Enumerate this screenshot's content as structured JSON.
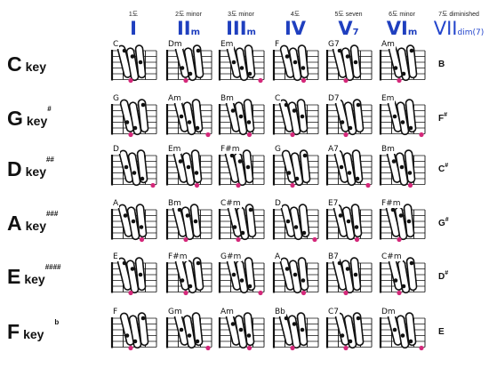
{
  "columns": [
    {
      "num": "1도",
      "roman": "I",
      "sfx": "",
      "quality": ""
    },
    {
      "num": "2도",
      "roman": "II",
      "sfx": "m",
      "quality": "minor"
    },
    {
      "num": "3도",
      "roman": "III",
      "sfx": "m",
      "quality": "minor"
    },
    {
      "num": "4도",
      "roman": "IV",
      "sfx": "",
      "quality": ""
    },
    {
      "num": "5도",
      "roman": "V",
      "sfx": "7",
      "quality": "seven"
    },
    {
      "num": "6도",
      "roman": "VI",
      "sfx": "m",
      "quality": "minor"
    },
    {
      "num": "7도",
      "roman": "VII",
      "sfx": "dim(7)",
      "quality": "diminished"
    }
  ],
  "rows": [
    {
      "letter": "C",
      "word": "key",
      "sharps": "",
      "flat": "",
      "chords": [
        "C",
        "Dm",
        "Em",
        "F",
        "G7",
        "Am"
      ],
      "dim": "B",
      "dim_sharp": ""
    },
    {
      "letter": "G",
      "word": "key",
      "sharps": "#",
      "flat": "",
      "chords": [
        "G",
        "Am",
        "Bm",
        "C",
        "D7",
        "Em"
      ],
      "dim": "F",
      "dim_sharp": "#"
    },
    {
      "letter": "D",
      "word": "key",
      "sharps": "##",
      "flat": "",
      "chords": [
        "D",
        "Em",
        "F#m",
        "G",
        "A7",
        "Bm"
      ],
      "dim": "C",
      "dim_sharp": "#"
    },
    {
      "letter": "A",
      "word": "key",
      "sharps": "###",
      "flat": "",
      "chords": [
        "A",
        "Bm",
        "C#m",
        "D",
        "E7",
        "F#m"
      ],
      "dim": "G",
      "dim_sharp": "#"
    },
    {
      "letter": "E",
      "word": "key",
      "sharps": "####",
      "flat": "",
      "chords": [
        "E",
        "F#m",
        "G#m",
        "A",
        "B7",
        "C#m"
      ],
      "dim": "D",
      "dim_sharp": "#"
    },
    {
      "letter": "F",
      "word": "key",
      "sharps": "",
      "flat": "b",
      "chords": [
        "F",
        "Gm",
        "Am",
        "Bb",
        "C7",
        "Dm"
      ],
      "dim": "E",
      "dim_sharp": ""
    }
  ],
  "colors": {
    "roman": "#1f3fbf",
    "marker": "#d4287a",
    "ink": "#111111"
  }
}
